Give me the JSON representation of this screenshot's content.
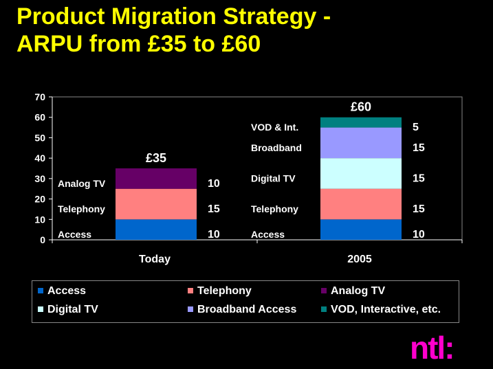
{
  "title_lines": [
    "Product Migration Strategy -",
    "ARPU from £35 to £60"
  ],
  "logo_text": "ntl:",
  "colors": {
    "title": "#ffff00",
    "logo": "#ff00cc",
    "access": "#0066cc",
    "telephony": "#ff8080",
    "analog_tv": "#660066",
    "digital_tv": "#ccffff",
    "broadband": "#9999ff",
    "vod": "#008080"
  },
  "chart_data": {
    "type": "bar",
    "stacked": true,
    "categories": [
      "Today",
      "2005"
    ],
    "ylim": [
      0,
      70
    ],
    "yticks": [
      0,
      10,
      20,
      30,
      40,
      50,
      60,
      70
    ],
    "grid": false,
    "legend_position": "bottom",
    "totals": [
      "£35",
      "£60"
    ],
    "series": [
      {
        "name": "Access",
        "values": [
          10,
          10
        ]
      },
      {
        "name": "Telephony",
        "values": [
          15,
          15
        ]
      },
      {
        "name": "Analog TV",
        "values": [
          10,
          0
        ]
      },
      {
        "name": "Digital TV",
        "values": [
          0,
          15
        ]
      },
      {
        "name": "Broadband Access",
        "values": [
          0,
          15
        ]
      },
      {
        "name": "VOD, Interactive, etc.",
        "values": [
          0,
          5
        ]
      }
    ],
    "segment_labels": [
      [
        "Access",
        "Telephony",
        "Analog TV",
        "",
        "",
        ""
      ],
      [
        "Access",
        "Telephony",
        "",
        "Digital TV",
        "Broadband",
        "VOD  & Int."
      ]
    ]
  }
}
